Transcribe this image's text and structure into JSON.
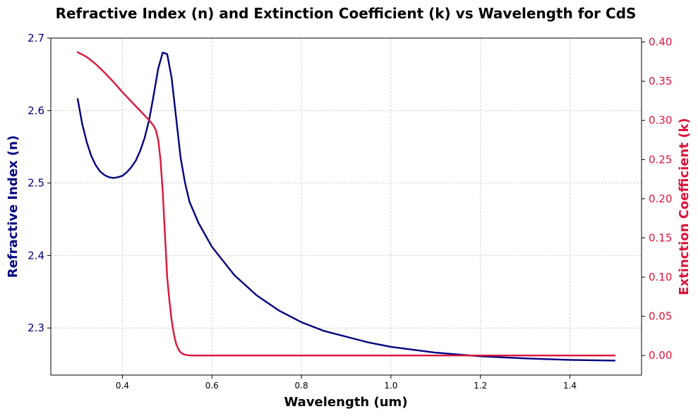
{
  "chart_data": {
    "type": "line",
    "title": "Refractive Index (n) and Extinction Coefficient (k) vs Wavelength for CdS",
    "xlabel": "Wavelength (um)",
    "ylabel_left": "Refractive Index (n)",
    "ylabel_right": "Extinction Coefficient (k)",
    "xlim": [
      0.24,
      1.56
    ],
    "ylim_left": [
      2.235,
      2.7
    ],
    "ylim_right": [
      -0.025,
      0.405
    ],
    "x_ticks": [
      0.4,
      0.6,
      0.8,
      1.0,
      1.2,
      1.4
    ],
    "x_tick_labels": [
      "0.4",
      "0.6",
      "0.8",
      "1.0",
      "1.2",
      "1.4"
    ],
    "y_left_ticks": [
      2.3,
      2.4,
      2.5,
      2.6,
      2.7
    ],
    "y_left_tick_labels": [
      "2.3",
      "2.4",
      "2.5",
      "2.6",
      "2.7"
    ],
    "y_right_ticks": [
      0.0,
      0.05,
      0.1,
      0.15,
      0.2,
      0.25,
      0.3,
      0.35,
      0.4
    ],
    "y_right_tick_labels": [
      "0.00",
      "0.05",
      "0.10",
      "0.15",
      "0.20",
      "0.25",
      "0.30",
      "0.35",
      "0.40"
    ],
    "grid": true,
    "colors": {
      "n": "#000080",
      "k": "#dc143c"
    },
    "series": [
      {
        "key": "n",
        "axis": "left",
        "x": [
          0.3,
          0.31,
          0.32,
          0.33,
          0.34,
          0.35,
          0.36,
          0.37,
          0.38,
          0.39,
          0.4,
          0.41,
          0.42,
          0.43,
          0.44,
          0.45,
          0.46,
          0.47,
          0.48,
          0.49,
          0.5,
          0.51,
          0.52,
          0.53,
          0.54,
          0.55,
          0.57,
          0.6,
          0.65,
          0.7,
          0.75,
          0.8,
          0.85,
          0.9,
          0.95,
          1.0,
          1.1,
          1.2,
          1.3,
          1.4,
          1.5
        ],
        "y": [
          2.616,
          2.582,
          2.557,
          2.538,
          2.525,
          2.516,
          2.511,
          2.508,
          2.507,
          2.508,
          2.51,
          2.515,
          2.522,
          2.531,
          2.545,
          2.563,
          2.588,
          2.622,
          2.658,
          2.68,
          2.678,
          2.645,
          2.59,
          2.535,
          2.5,
          2.474,
          2.445,
          2.412,
          2.373,
          2.345,
          2.324,
          2.308,
          2.296,
          2.288,
          2.28,
          2.274,
          2.266,
          2.261,
          2.258,
          2.256,
          2.255
        ]
      },
      {
        "key": "k",
        "axis": "right",
        "x": [
          0.3,
          0.32,
          0.34,
          0.36,
          0.38,
          0.4,
          0.42,
          0.44,
          0.45,
          0.46,
          0.47,
          0.475,
          0.48,
          0.485,
          0.49,
          0.495,
          0.5,
          0.505,
          0.51,
          0.515,
          0.52,
          0.525,
          0.53,
          0.535,
          0.54,
          0.545,
          0.55,
          0.56,
          0.6,
          0.8,
          1.0,
          1.2,
          1.4,
          1.5
        ],
        "y": [
          0.387,
          0.381,
          0.372,
          0.361,
          0.349,
          0.336,
          0.324,
          0.312,
          0.306,
          0.3,
          0.293,
          0.287,
          0.275,
          0.25,
          0.21,
          0.155,
          0.1,
          0.07,
          0.045,
          0.027,
          0.015,
          0.008,
          0.004,
          0.002,
          0.001,
          0.0005,
          0.0002,
          0.0,
          0.0,
          0.0,
          0.0,
          0.0,
          0.0,
          0.0
        ]
      }
    ]
  }
}
